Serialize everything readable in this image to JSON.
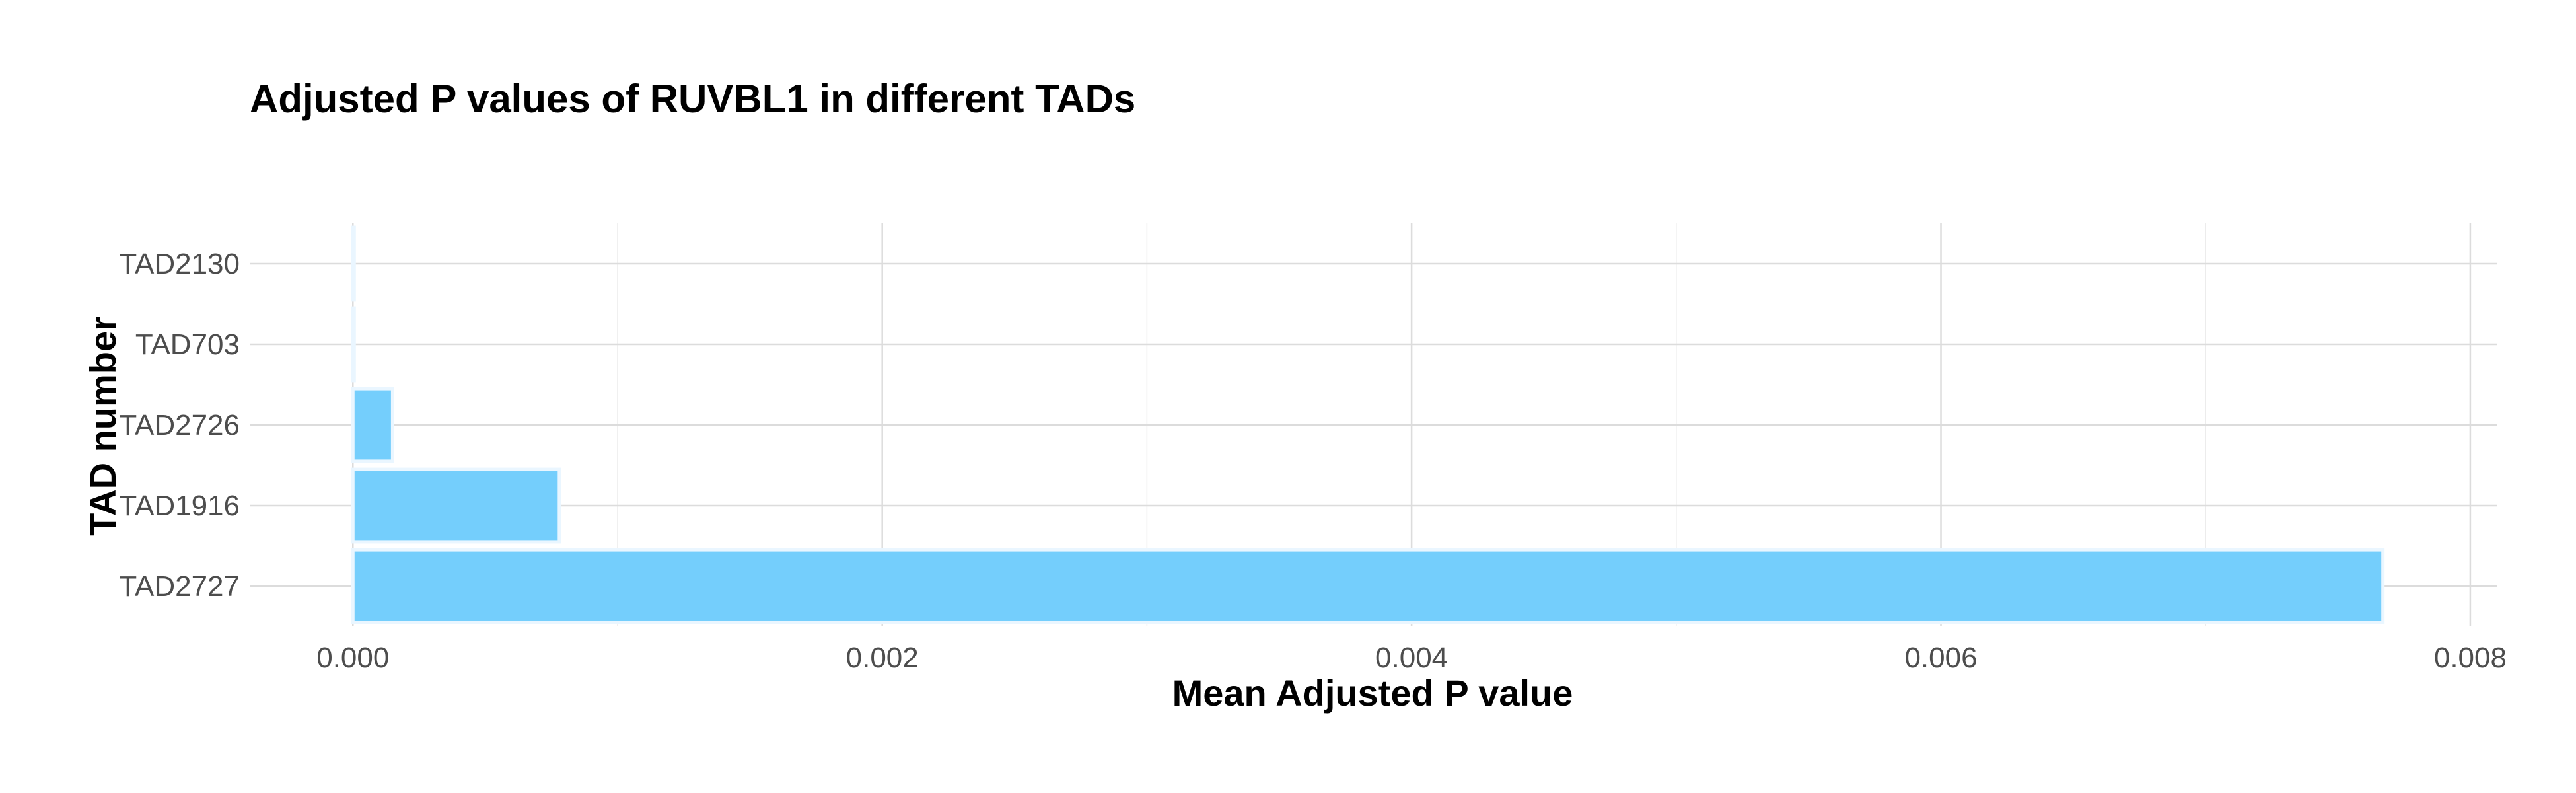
{
  "chart_data": {
    "type": "bar",
    "orientation": "horizontal",
    "title": "Adjusted P values of RUVBL1 in different TADs",
    "xlabel": "Mean Adjusted P value",
    "ylabel": "TAD number",
    "categories": [
      "TAD2727",
      "TAD1916",
      "TAD2726",
      "TAD703",
      "TAD2130"
    ],
    "values": [
      0.00767,
      0.00078,
      0.00015,
      0.0,
      0.0
    ],
    "xlim": [
      -0.00039,
      0.0081
    ],
    "xticks": [
      0.0,
      0.002,
      0.004,
      0.006,
      0.008
    ],
    "xtick_labels": [
      "0.000",
      "0.002",
      "0.004",
      "0.006",
      "0.008"
    ],
    "grid": true,
    "legend": "none",
    "bar_color": "#74CEFC"
  }
}
